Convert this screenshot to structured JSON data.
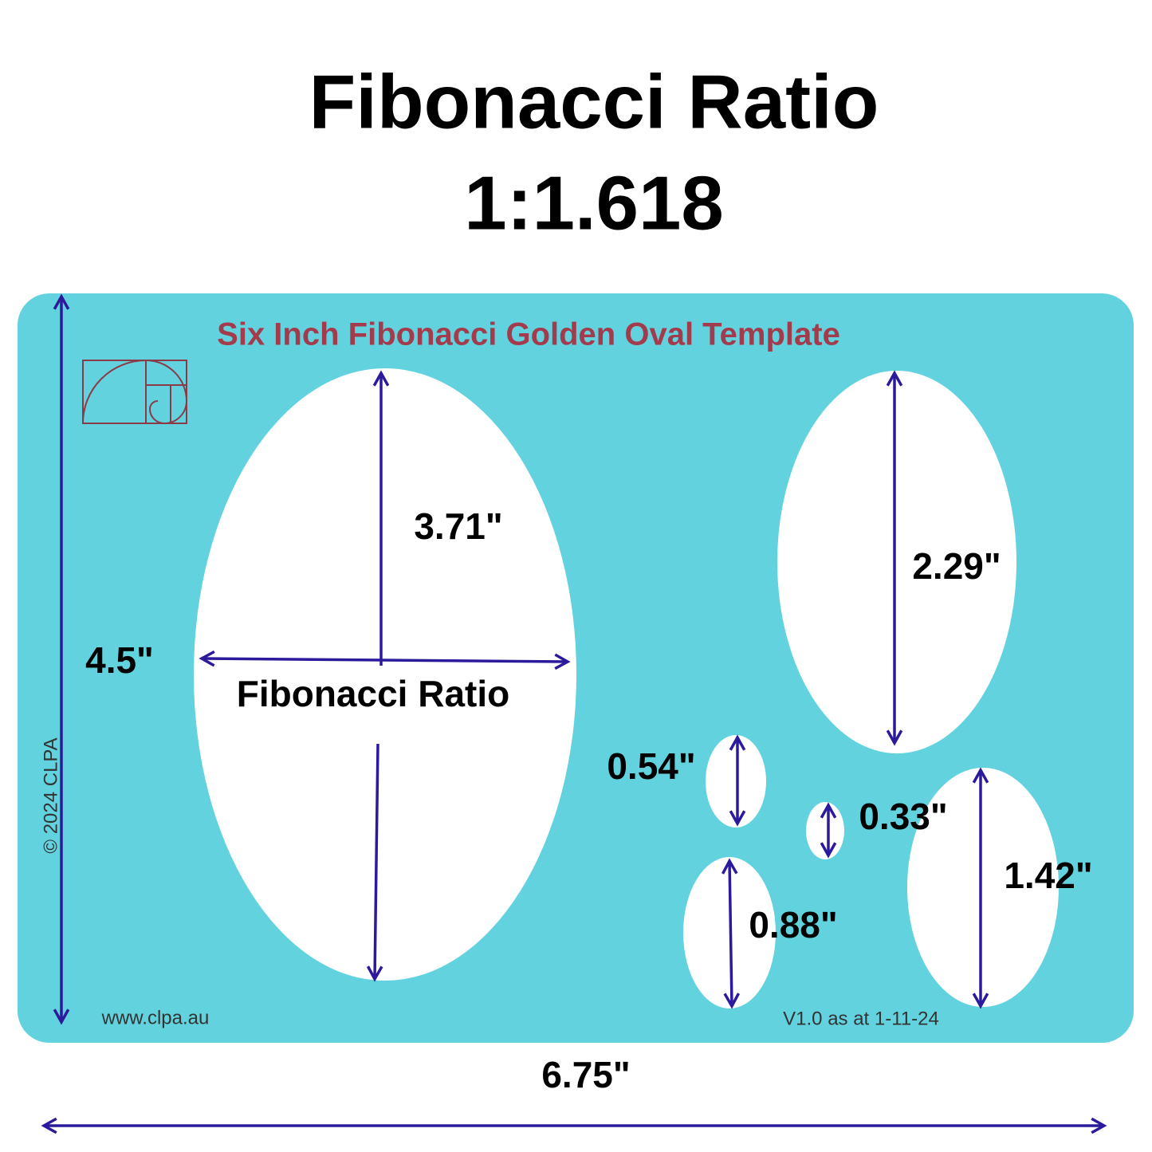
{
  "header": {
    "title_line1": "Fibonacci Ratio",
    "title_line2": "1:1.618"
  },
  "template": {
    "title": "Six Inch Fibonacci Golden Oval Template",
    "website": "www.clpa.au",
    "version": "V1.0 as at 1-11-24",
    "copyright": "© 2024 CLPA"
  },
  "dimensions": {
    "large_oval_height": "3.71\"",
    "large_oval_width": "Fibonacci Ratio",
    "template_height": "4.5\"",
    "template_width": "6.75\"",
    "upper_right_oval": "2.29\"",
    "small_oval_a": "0.54\"",
    "tiny_oval": "0.33\"",
    "lower_right_oval": "1.42\"",
    "lower_small_oval": "0.88\""
  }
}
